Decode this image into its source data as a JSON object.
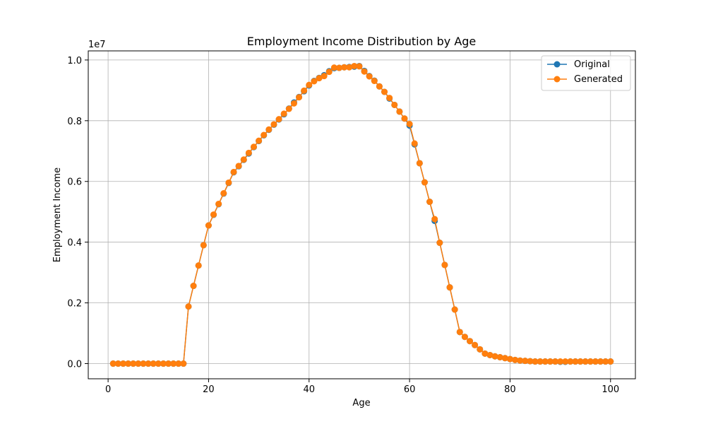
{
  "chart_data": {
    "type": "line",
    "title": "Employment Income Distribution by Age",
    "xlabel": "Age",
    "ylabel": "Employment Income",
    "y_offset_text": "1e7",
    "xlim": [
      -3.95,
      104.95
    ],
    "ylim": [
      -0.05,
      1.03
    ],
    "y_scale_note": "values in units of 1e7",
    "xticks": [
      0,
      20,
      40,
      60,
      80,
      100
    ],
    "xtick_labels": [
      "0",
      "20",
      "40",
      "60",
      "80",
      "100"
    ],
    "yticks": [
      0.0,
      0.2,
      0.4,
      0.6,
      0.8,
      1.0
    ],
    "ytick_labels": [
      "0.0",
      "0.2",
      "0.4",
      "0.6",
      "0.8",
      "1.0"
    ],
    "grid": true,
    "legend_position": "top-right",
    "x": [
      1,
      2,
      3,
      4,
      5,
      6,
      7,
      8,
      9,
      10,
      11,
      12,
      13,
      14,
      15,
      16,
      17,
      18,
      19,
      20,
      21,
      22,
      23,
      24,
      25,
      26,
      27,
      28,
      29,
      30,
      31,
      32,
      33,
      34,
      35,
      36,
      37,
      38,
      39,
      40,
      41,
      42,
      43,
      44,
      45,
      46,
      47,
      48,
      49,
      50,
      51,
      52,
      53,
      54,
      55,
      56,
      57,
      58,
      59,
      60,
      61,
      62,
      63,
      64,
      65,
      66,
      67,
      68,
      69,
      70,
      71,
      72,
      73,
      74,
      75,
      76,
      77,
      78,
      79,
      80,
      81,
      82,
      83,
      84,
      85,
      86,
      87,
      88,
      89,
      90,
      91,
      92,
      93,
      94,
      95,
      96,
      97,
      98,
      99,
      100
    ],
    "series": [
      {
        "name": "Original",
        "color": "#1f77b4",
        "values": [
          0,
          0,
          0,
          0,
          0,
          0,
          0,
          0,
          0,
          0,
          0,
          0,
          0,
          0,
          0,
          0.188,
          0.256,
          0.323,
          0.39,
          0.455,
          0.49,
          0.525,
          0.56,
          0.595,
          0.63,
          0.65,
          0.671,
          0.692,
          0.713,
          0.733,
          0.752,
          0.77,
          0.787,
          0.804,
          0.821,
          0.84,
          0.86,
          0.878,
          0.897,
          0.916,
          0.931,
          0.941,
          0.95,
          0.963,
          0.973,
          0.974,
          0.976,
          0.977,
          0.978,
          0.98,
          0.964,
          0.947,
          0.932,
          0.913,
          0.895,
          0.873,
          0.852,
          0.83,
          0.807,
          0.784,
          0.722,
          0.66,
          0.597,
          0.533,
          0.47,
          0.398,
          0.325,
          0.251,
          0.178,
          0.104,
          0.088,
          0.074,
          0.061,
          0.047,
          0.033,
          0.028,
          0.024,
          0.021,
          0.018,
          0.015,
          0.012,
          0.01,
          0.009,
          0.008,
          0.007,
          0.007,
          0.007,
          0.007,
          0.007,
          0.006,
          0.006,
          0.007,
          0.007,
          0.007,
          0.007,
          0.007,
          0.007,
          0.007,
          0.007,
          0.007
        ]
      },
      {
        "name": "Generated",
        "color": "#ff7f0e",
        "values": [
          0,
          0,
          0,
          0,
          0,
          0,
          0,
          0,
          0,
          0,
          0,
          0,
          0,
          0,
          0,
          0.188,
          0.256,
          0.323,
          0.39,
          0.455,
          0.491,
          0.526,
          0.561,
          0.596,
          0.631,
          0.651,
          0.672,
          0.694,
          0.714,
          0.734,
          0.753,
          0.771,
          0.788,
          0.805,
          0.823,
          0.839,
          0.857,
          0.877,
          0.899,
          0.918,
          0.93,
          0.94,
          0.947,
          0.961,
          0.975,
          0.974,
          0.976,
          0.976,
          0.98,
          0.979,
          0.962,
          0.946,
          0.931,
          0.913,
          0.895,
          0.875,
          0.852,
          0.83,
          0.807,
          0.789,
          0.725,
          0.66,
          0.597,
          0.533,
          0.476,
          0.398,
          0.325,
          0.251,
          0.178,
          0.104,
          0.088,
          0.074,
          0.061,
          0.047,
          0.033,
          0.028,
          0.024,
          0.021,
          0.018,
          0.015,
          0.012,
          0.01,
          0.009,
          0.008,
          0.007,
          0.007,
          0.007,
          0.007,
          0.007,
          0.007,
          0.007,
          0.007,
          0.007,
          0.007,
          0.007,
          0.007,
          0.007,
          0.007,
          0.007,
          0.007
        ]
      }
    ]
  }
}
